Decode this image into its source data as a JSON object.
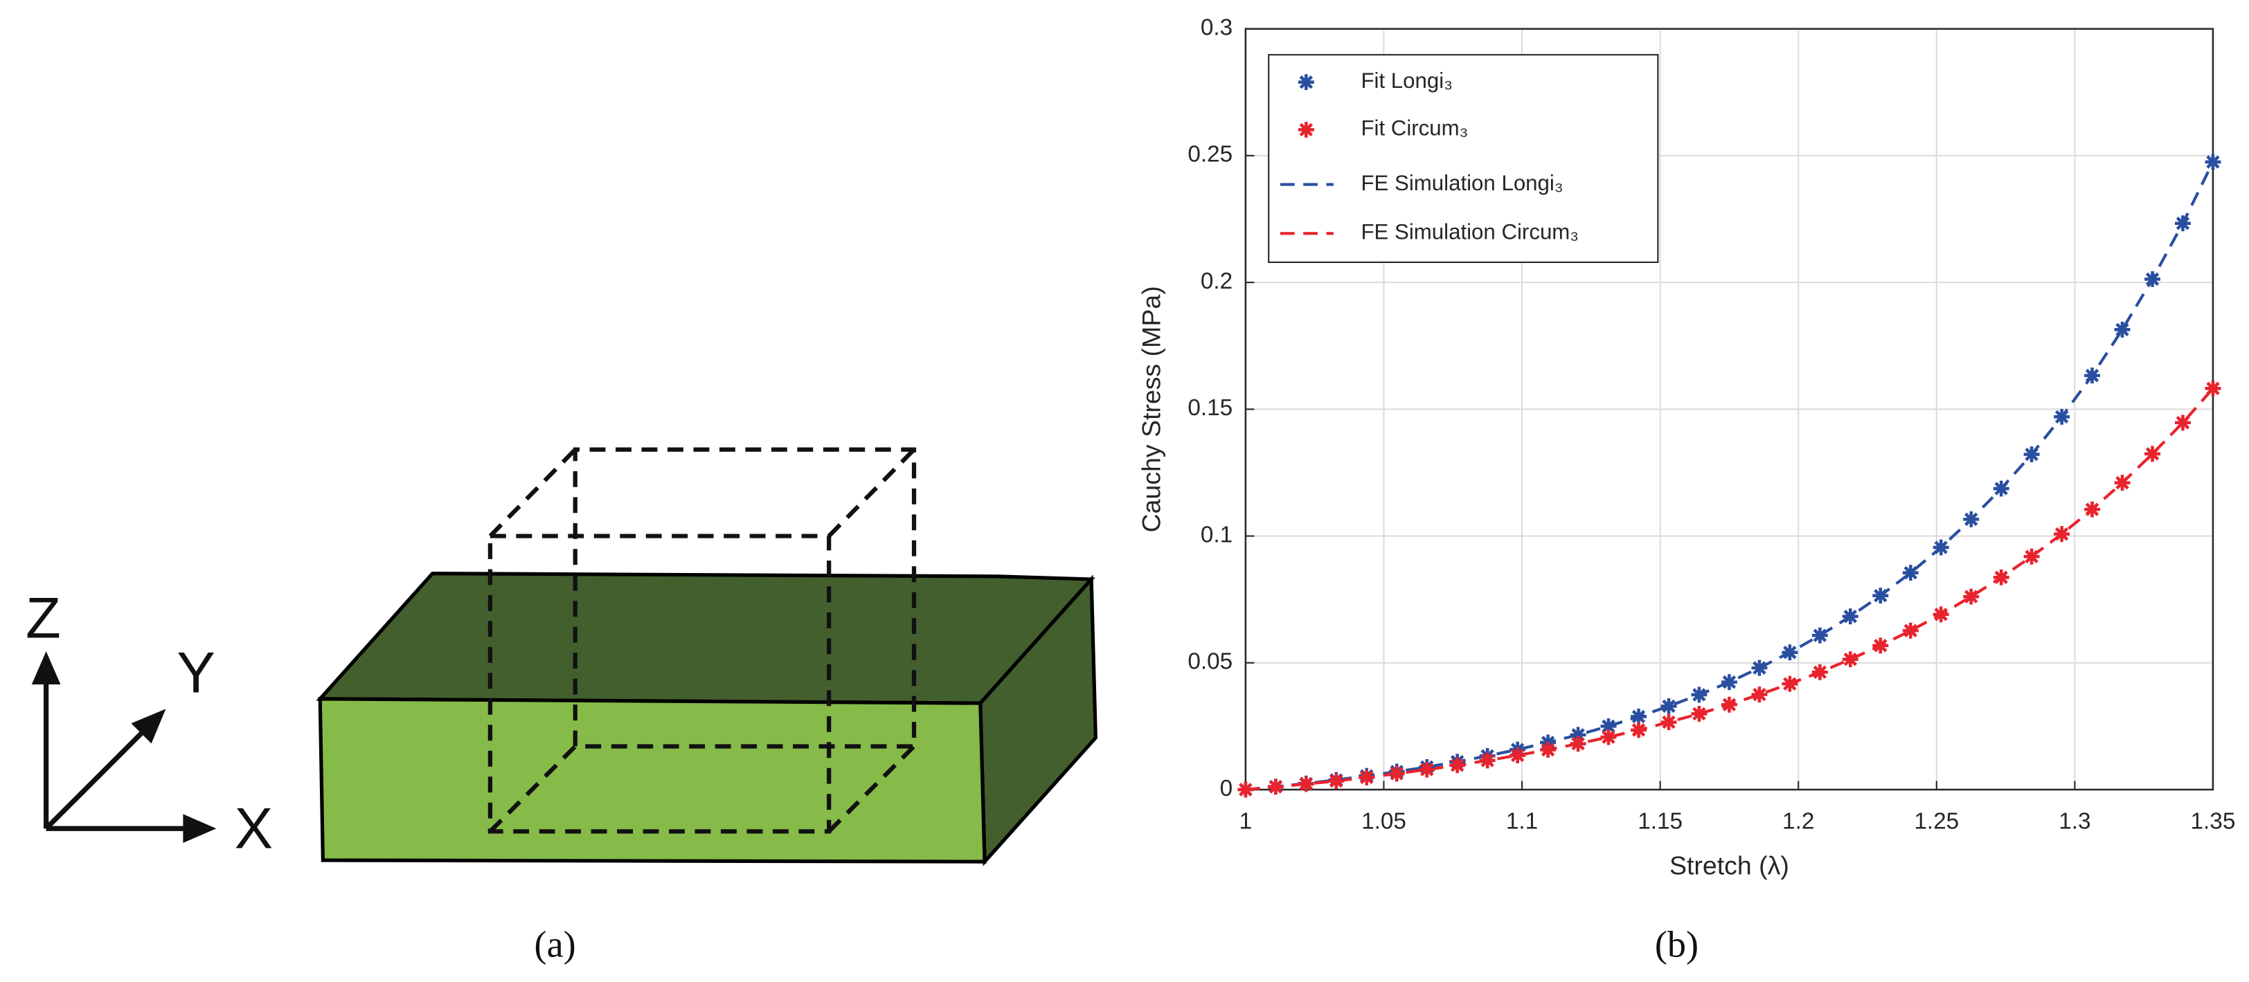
{
  "panel_a": {
    "label": "(a)",
    "axis_labels": {
      "x": "X",
      "y": "Y",
      "z": "Z"
    }
  },
  "chart_data": {
    "type": "scatter-line",
    "panel_label": "(b)",
    "xlabel": "Stretch (λ)",
    "ylabel": "Cauchy Stress (MPa)",
    "x": [
      1,
      1.0109,
      1.0219,
      1.0328,
      1.0438,
      1.0547,
      1.0656,
      1.0766,
      1.0875,
      1.0984,
      1.1094,
      1.1203,
      1.1313,
      1.1422,
      1.1531,
      1.1641,
      1.175,
      1.1859,
      1.1969,
      1.2078,
      1.2188,
      1.2297,
      1.2406,
      1.2516,
      1.2625,
      1.2734,
      1.2844,
      1.2953,
      1.3063,
      1.3172,
      1.3281,
      1.3391,
      1.35
    ],
    "series": [
      {
        "name": "Fit Longi₃",
        "color": "#2a4fa0",
        "style": "marker",
        "values": [
          0,
          0.0012,
          0.0024,
          0.0038,
          0.0054,
          0.0071,
          0.0089,
          0.011,
          0.0133,
          0.0158,
          0.0186,
          0.0216,
          0.025,
          0.0288,
          0.0329,
          0.0374,
          0.0424,
          0.048,
          0.0541,
          0.0608,
          0.0683,
          0.0765,
          0.0855,
          0.0955,
          0.1066,
          0.1187,
          0.1322,
          0.147,
          0.1633,
          0.1814,
          0.2013,
          0.2233,
          0.2475
        ]
      },
      {
        "name": "Fit Circum₃",
        "color": "#e8232c",
        "style": "marker",
        "values": [
          0,
          0.0011,
          0.0022,
          0.0034,
          0.0048,
          0.0063,
          0.0079,
          0.0096,
          0.0115,
          0.0135,
          0.0157,
          0.0181,
          0.0207,
          0.0235,
          0.0266,
          0.0299,
          0.0335,
          0.0375,
          0.0417,
          0.0463,
          0.0514,
          0.0568,
          0.0627,
          0.0691,
          0.0761,
          0.0837,
          0.0919,
          0.1008,
          0.1105,
          0.121,
          0.1324,
          0.1447,
          0.1582
        ]
      },
      {
        "name": "FE Simulation Longi₃",
        "color": "#2a4fa0",
        "style": "dashed",
        "values": [
          0,
          0.0012,
          0.0024,
          0.0038,
          0.0054,
          0.0071,
          0.0089,
          0.011,
          0.0133,
          0.0158,
          0.0186,
          0.0216,
          0.025,
          0.0288,
          0.0329,
          0.0374,
          0.0424,
          0.048,
          0.0541,
          0.0608,
          0.0683,
          0.0765,
          0.0855,
          0.0955,
          0.1066,
          0.1187,
          0.1322,
          0.147,
          0.1633,
          0.1814,
          0.2013,
          0.2233,
          0.2475
        ]
      },
      {
        "name": "FE Simulation Circum₃",
        "color": "#e8232c",
        "style": "dashed",
        "values": [
          0,
          0.0011,
          0.0022,
          0.0034,
          0.0048,
          0.0063,
          0.0079,
          0.0096,
          0.0115,
          0.0135,
          0.0157,
          0.0181,
          0.0207,
          0.0235,
          0.0266,
          0.0299,
          0.0335,
          0.0375,
          0.0417,
          0.0463,
          0.0514,
          0.0568,
          0.0627,
          0.0691,
          0.0761,
          0.0837,
          0.0919,
          0.1008,
          0.1105,
          0.121,
          0.1324,
          0.1447,
          0.1582
        ]
      }
    ],
    "xlim": [
      1,
      1.35
    ],
    "xticks": [
      1,
      1.05,
      1.1,
      1.15,
      1.2,
      1.25,
      1.3,
      1.35
    ],
    "ylim": [
      0,
      0.3
    ],
    "yticks": [
      0,
      0.05,
      0.1,
      0.15,
      0.2,
      0.25,
      0.3
    ],
    "grid": true,
    "legend": "upper left"
  }
}
